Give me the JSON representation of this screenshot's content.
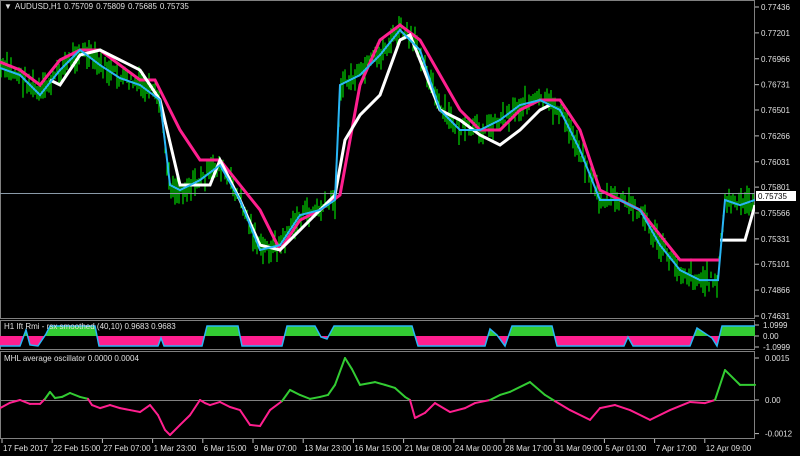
{
  "main": {
    "symbol": "AUDUSD,H1",
    "open": "0.75709",
    "high": "0.75809",
    "low": "0.75685",
    "close": "0.75735",
    "price_range": [
      0.74631,
      0.77436
    ],
    "price_ticks": [
      "0.77436",
      "0.77201",
      "0.76966",
      "0.76731",
      "0.76501",
      "0.76266",
      "0.76031",
      "0.75801",
      "0.75566",
      "0.75331",
      "0.75101",
      "0.74866",
      "0.74631"
    ],
    "current_price": "0.75735",
    "colors": {
      "candles": "#00ff00",
      "cyan_line": "#29b6f6",
      "pink_line": "#ff1f8f",
      "white_line": "#ffffff"
    },
    "cyan_line": [
      [
        0,
        0.76882
      ],
      [
        20,
        0.76819
      ],
      [
        40,
        0.76637
      ],
      [
        60,
        0.76864
      ],
      [
        80,
        0.77046
      ],
      [
        100,
        0.76909
      ],
      [
        120,
        0.76791
      ],
      [
        140,
        0.76728
      ],
      [
        160,
        0.76592
      ],
      [
        170,
        0.7582
      ],
      [
        180,
        0.75774
      ],
      [
        200,
        0.75865
      ],
      [
        220,
        0.76001
      ],
      [
        240,
        0.75684
      ],
      [
        260,
        0.7523
      ],
      [
        280,
        0.75275
      ],
      [
        300,
        0.75547
      ],
      [
        320,
        0.75593
      ],
      [
        335,
        0.75684
      ],
      [
        340,
        0.76728
      ],
      [
        360,
        0.76819
      ],
      [
        380,
        0.77
      ],
      [
        400,
        0.77227
      ],
      [
        420,
        0.77046
      ],
      [
        440,
        0.76501
      ],
      [
        460,
        0.76319
      ],
      [
        480,
        0.76319
      ],
      [
        500,
        0.7641
      ],
      [
        520,
        0.76546
      ],
      [
        540,
        0.76592
      ],
      [
        560,
        0.76501
      ],
      [
        580,
        0.76138
      ],
      [
        600,
        0.75684
      ],
      [
        620,
        0.75684
      ],
      [
        640,
        0.75593
      ],
      [
        660,
        0.75275
      ],
      [
        680,
        0.75048
      ],
      [
        700,
        0.74957
      ],
      [
        718,
        0.74957
      ],
      [
        725,
        0.75684
      ],
      [
        740,
        0.75638
      ],
      [
        755,
        0.75684
      ]
    ],
    "pink_line": [
      [
        0,
        0.76937
      ],
      [
        20,
        0.76864
      ],
      [
        40,
        0.76728
      ],
      [
        60,
        0.76955
      ],
      [
        80,
        0.77046
      ],
      [
        100,
        0.77046
      ],
      [
        120,
        0.76909
      ],
      [
        140,
        0.76773
      ],
      [
        155,
        0.76773
      ],
      [
        170,
        0.76501
      ],
      [
        180,
        0.76319
      ],
      [
        200,
        0.76047
      ],
      [
        220,
        0.76047
      ],
      [
        240,
        0.7582
      ],
      [
        260,
        0.75593
      ],
      [
        280,
        0.7523
      ],
      [
        300,
        0.75502
      ],
      [
        320,
        0.75593
      ],
      [
        340,
        0.75729
      ],
      [
        360,
        0.76728
      ],
      [
        380,
        0.77136
      ],
      [
        400,
        0.77273
      ],
      [
        420,
        0.77136
      ],
      [
        440,
        0.76819
      ],
      [
        460,
        0.76501
      ],
      [
        480,
        0.76319
      ],
      [
        500,
        0.76319
      ],
      [
        520,
        0.76501
      ],
      [
        540,
        0.76592
      ],
      [
        560,
        0.76592
      ],
      [
        580,
        0.76319
      ],
      [
        600,
        0.75774
      ],
      [
        620,
        0.75684
      ],
      [
        640,
        0.75593
      ],
      [
        660,
        0.75366
      ],
      [
        680,
        0.75139
      ],
      [
        720,
        0.75139
      ]
    ],
    "white_line": [
      [
        [
          50,
          0.76773
        ],
        [
          60,
          0.76728
        ],
        [
          80,
          0.77
        ],
        [
          100,
          0.77046
        ],
        [
          120,
          0.76955
        ],
        [
          140,
          0.76864
        ],
        [
          160,
          0.76592
        ],
        [
          180,
          0.7582
        ],
        [
          210,
          0.7582
        ],
        [
          220,
          0.76047
        ],
        [
          240,
          0.75684
        ],
        [
          260,
          0.75275
        ],
        [
          280,
          0.7523
        ],
        [
          300,
          0.75411
        ],
        [
          320,
          0.75593
        ],
        [
          335,
          0.75729
        ],
        [
          345,
          0.76228
        ],
        [
          360,
          0.76455
        ],
        [
          380,
          0.76637
        ],
        [
          400,
          0.77136
        ],
        [
          410,
          0.77182
        ],
        [
          420,
          0.76955
        ],
        [
          440,
          0.76501
        ],
        [
          460,
          0.7641
        ],
        [
          480,
          0.76274
        ],
        [
          500,
          0.76183
        ],
        [
          520,
          0.76319
        ],
        [
          540,
          0.76501
        ],
        [
          550,
          0.76546
        ]
      ],
      [
        [
          720,
          0.7532
        ],
        [
          745,
          0.7532
        ],
        [
          755,
          0.75638
        ]
      ]
    ]
  },
  "ift": {
    "title": "H1 Ift Rmi - rsx smoothed (40,10) 0.9683 0.9683",
    "ticks": [
      "1.0999",
      "0.00",
      "-1.0999"
    ],
    "range": [
      -1.0999,
      1.0999
    ],
    "colors": {
      "positive": "#33cc33",
      "negative": "#ff1f8f",
      "line": "#29b6f6"
    },
    "values": [
      [
        0,
        -1.0
      ],
      [
        20,
        -1.0
      ],
      [
        26,
        0.6
      ],
      [
        30,
        -0.9
      ],
      [
        38,
        -1.0
      ],
      [
        46,
        0.2
      ],
      [
        50,
        1.0
      ],
      [
        95,
        1.0
      ],
      [
        99,
        -1.0
      ],
      [
        158,
        -1.0
      ],
      [
        161,
        -0.2
      ],
      [
        164,
        -1.0
      ],
      [
        202,
        -1.0
      ],
      [
        207,
        1.0
      ],
      [
        238,
        1.0
      ],
      [
        242,
        -1.0
      ],
      [
        282,
        -1.0
      ],
      [
        287,
        1.0
      ],
      [
        315,
        1.0
      ],
      [
        321,
        -0.1
      ],
      [
        327,
        -0.3
      ],
      [
        334,
        1.0
      ],
      [
        412,
        1.0
      ],
      [
        418,
        -1.0
      ],
      [
        485,
        -1.0
      ],
      [
        490,
        0.7
      ],
      [
        497,
        0.1
      ],
      [
        505,
        -1.0
      ],
      [
        512,
        1.0
      ],
      [
        552,
        1.0
      ],
      [
        557,
        -1.0
      ],
      [
        624,
        -1.0
      ],
      [
        628,
        -0.1
      ],
      [
        633,
        -1.0
      ],
      [
        690,
        -1.0
      ],
      [
        697,
        0.8
      ],
      [
        712,
        -0.2
      ],
      [
        717,
        -1.0
      ],
      [
        722,
        1.0
      ],
      [
        755,
        1.0
      ]
    ]
  },
  "mhl": {
    "title": "MHL average oscillator 0.0000 0.0004",
    "ticks": [
      "0.0015",
      "0.00",
      "-0.0012"
    ],
    "colors": {
      "positive": "#33cc33",
      "negative": "#ff1f8f"
    },
    "values": [
      [
        0,
        -0.00029
      ],
      [
        10,
        -0.0001
      ],
      [
        20,
        0
      ],
      [
        30,
        -0.00014
      ],
      [
        40,
        -0.00014
      ],
      [
        45,
        4e-05
      ],
      [
        50,
        0.00029
      ],
      [
        55,
        7e-05
      ],
      [
        62,
        0.00011
      ],
      [
        70,
        0.00025
      ],
      [
        80,
        0.00011
      ],
      [
        88,
        4e-05
      ],
      [
        92,
        -0.00018
      ],
      [
        100,
        -0.00029
      ],
      [
        110,
        -0.00018
      ],
      [
        120,
        -0.00029
      ],
      [
        130,
        -0.00036
      ],
      [
        140,
        -0.00043
      ],
      [
        150,
        -0.00018
      ],
      [
        158,
        -0.00054
      ],
      [
        165,
        -0.00107
      ],
      [
        170,
        -0.00125
      ],
      [
        180,
        -0.00089
      ],
      [
        190,
        -0.00054
      ],
      [
        200,
        0
      ],
      [
        205,
        -0.00011
      ],
      [
        210,
        -0.00018
      ],
      [
        220,
        -7e-05
      ],
      [
        230,
        -0.00025
      ],
      [
        240,
        -0.00036
      ],
      [
        250,
        -0.00089
      ],
      [
        260,
        -0.00093
      ],
      [
        270,
        -0.00036
      ],
      [
        282,
        -4e-05
      ],
      [
        290,
        0.00036
      ],
      [
        300,
        0.00018
      ],
      [
        310,
        4e-05
      ],
      [
        320,
        0.00011
      ],
      [
        328,
        0.00018
      ],
      [
        335,
        0.00054
      ],
      [
        345,
        0.0015
      ],
      [
        352,
        0.0011
      ],
      [
        360,
        0.00054
      ],
      [
        375,
        0.00064
      ],
      [
        385,
        0.00054
      ],
      [
        395,
        0.00043
      ],
      [
        405,
        0.00011
      ],
      [
        410,
        0.0
      ],
      [
        415,
        -0.00064
      ],
      [
        425,
        -0.00046
      ],
      [
        435,
        -0.00011
      ],
      [
        450,
        -0.00043
      ],
      [
        465,
        -0.00029
      ],
      [
        475,
        -0.00011
      ],
      [
        490,
        0.0
      ],
      [
        500,
        0.00018
      ],
      [
        510,
        0.00029
      ],
      [
        530,
        0.00064
      ],
      [
        545,
        0.00018
      ],
      [
        555,
        -4e-05
      ],
      [
        570,
        -0.00036
      ],
      [
        590,
        -0.00071
      ],
      [
        600,
        -0.00029
      ],
      [
        615,
        -0.00018
      ],
      [
        630,
        -0.00036
      ],
      [
        650,
        -0.00071
      ],
      [
        670,
        -0.00036
      ],
      [
        690,
        -7e-05
      ],
      [
        705,
        -0.00011
      ],
      [
        715,
        0.0
      ],
      [
        725,
        0.00107
      ],
      [
        740,
        0.00054
      ],
      [
        755,
        0.00054
      ]
    ]
  },
  "time_axis": [
    "17 Feb 2017",
    "22 Feb 15:00",
    "27 Feb 07:00",
    "1 Mar 23:00",
    "6 Mar 15:00",
    "9 Mar 07:00",
    "13 Mar 23:00",
    "16 Mar 15:00",
    "21 Mar 08:00",
    "24 Mar 00:00",
    "28 Mar 17:00",
    "31 Mar 09:00",
    "5 Apr 01:00",
    "7 Apr 17:00",
    "12 Apr 09:00"
  ]
}
